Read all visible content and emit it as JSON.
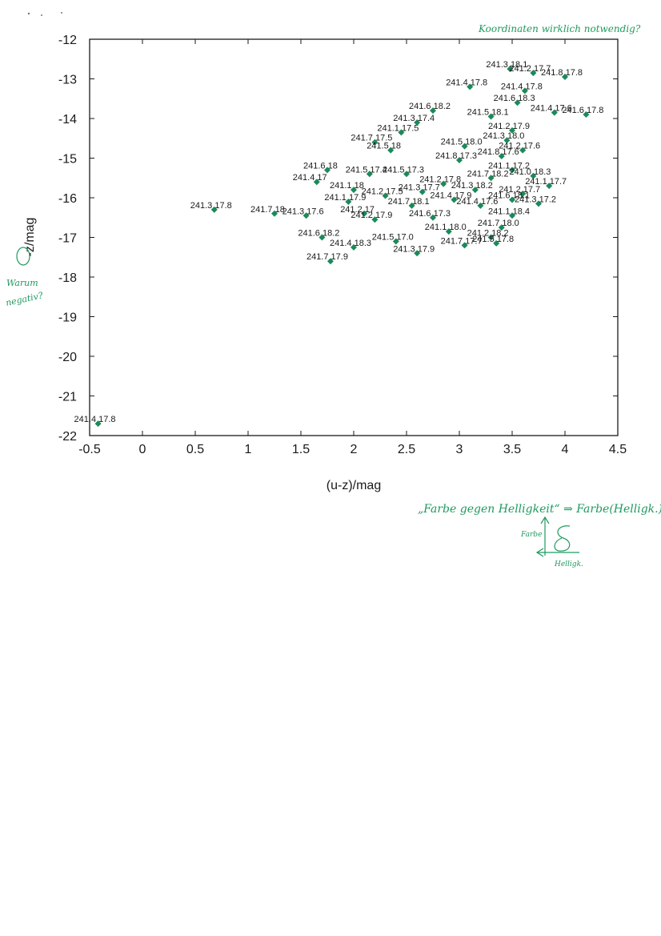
{
  "chart_data": {
    "type": "scatter",
    "title": "",
    "xlabel": "(u-z)/mag",
    "ylabel": "-z/mag",
    "xlim": [
      -0.5,
      4.5
    ],
    "ylim": [
      -22,
      -12
    ],
    "y_inverted_display": "top value -12, bottom value -22",
    "x_ticks": [
      "-0.5",
      "0",
      "0.5",
      "1",
      "1.5",
      "2",
      "2.5",
      "3",
      "3.5",
      "4",
      "4.5"
    ],
    "y_ticks": [
      "-12",
      "-13",
      "-14",
      "-15",
      "-16",
      "-17",
      "-18",
      "-19",
      "-20",
      "-21",
      "-22"
    ],
    "grid": false,
    "marker_color": "#1a8a5a",
    "series": [
      {
        "points": [
          {
            "x": -0.42,
            "y": -21.7,
            "label": "241.4 17.8"
          },
          {
            "x": 0.68,
            "y": -16.3,
            "label": "241.3 17.8"
          },
          {
            "x": 1.25,
            "y": -16.4,
            "label": "241.7 18"
          },
          {
            "x": 1.55,
            "y": -16.45,
            "label": "241.3 17.6"
          },
          {
            "x": 1.75,
            "y": -15.3,
            "label": "241.6 18"
          },
          {
            "x": 1.65,
            "y": -15.6,
            "label": "241.4 17"
          },
          {
            "x": 1.7,
            "y": -17.0,
            "label": "241.6 18.2"
          },
          {
            "x": 1.78,
            "y": -17.6,
            "label": "241.7 17.9"
          },
          {
            "x": 2.0,
            "y": -15.8,
            "label": "241.1 18"
          },
          {
            "x": 2.1,
            "y": -16.4,
            "label": "241.2 17"
          },
          {
            "x": 2.2,
            "y": -14.6,
            "label": "241.7 17.5"
          },
          {
            "x": 2.35,
            "y": -14.8,
            "label": "241.5 18"
          },
          {
            "x": 2.45,
            "y": -14.35,
            "label": "241.1 17.5"
          },
          {
            "x": 2.6,
            "y": -14.1,
            "label": "241.3 17.4"
          },
          {
            "x": 2.75,
            "y": -13.8,
            "label": "241.6 18.2"
          },
          {
            "x": 2.5,
            "y": -15.4,
            "label": "241.5 17.3"
          },
          {
            "x": 2.4,
            "y": -17.1,
            "label": "241.5 17.0"
          },
          {
            "x": 2.6,
            "y": -17.4,
            "label": "241.3 17.9"
          },
          {
            "x": 3.1,
            "y": -13.2,
            "label": "241.4 17.8"
          },
          {
            "x": 3.48,
            "y": -12.75,
            "label": "241.3 18.1"
          },
          {
            "x": 3.7,
            "y": -12.85,
            "label": "241.2 17.7"
          },
          {
            "x": 4.0,
            "y": -12.95,
            "label": "241.8 17.8"
          },
          {
            "x": 3.62,
            "y": -13.3,
            "label": "241.4 17.8"
          },
          {
            "x": 3.55,
            "y": -13.6,
            "label": "241.6 18.3"
          },
          {
            "x": 3.9,
            "y": -13.85,
            "label": "241.4 17.6"
          },
          {
            "x": 4.2,
            "y": -13.9,
            "label": "241.6 17.8"
          },
          {
            "x": 3.3,
            "y": -13.95,
            "label": "241.5 18.1"
          },
          {
            "x": 3.5,
            "y": -14.3,
            "label": "241.2 17.9"
          },
          {
            "x": 3.45,
            "y": -14.55,
            "label": "241.3 18.0"
          },
          {
            "x": 3.4,
            "y": -14.95,
            "label": "241.8 17.6"
          },
          {
            "x": 3.5,
            "y": -15.3,
            "label": "241.1 17.2"
          },
          {
            "x": 3.7,
            "y": -15.45,
            "label": "241.0 18.3"
          },
          {
            "x": 3.85,
            "y": -15.7,
            "label": "241.1 17.7"
          },
          {
            "x": 3.6,
            "y": -15.9,
            "label": "241.2 17.7"
          },
          {
            "x": 3.5,
            "y": -16.05,
            "label": "241.6 18.1"
          },
          {
            "x": 3.75,
            "y": -16.15,
            "label": "241.3 17.2"
          },
          {
            "x": 3.5,
            "y": -16.45,
            "label": "241.1 18.4"
          },
          {
            "x": 3.4,
            "y": -16.75,
            "label": "241.7 18.0"
          },
          {
            "x": 3.3,
            "y": -17.0,
            "label": "241.2 18.2"
          },
          {
            "x": 3.35,
            "y": -17.15,
            "label": "241.5 17.8"
          },
          {
            "x": 3.05,
            "y": -17.2,
            "label": "241.7 17.7"
          },
          {
            "x": 2.95,
            "y": -16.05,
            "label": "241.4 17.9"
          },
          {
            "x": 3.0,
            "y": -15.05,
            "label": "241.8 17.3"
          },
          {
            "x": 2.85,
            "y": -15.65,
            "label": "241.2 17.8"
          },
          {
            "x": 3.05,
            "y": -14.7,
            "label": "241.5 18.0"
          },
          {
            "x": 3.15,
            "y": -15.8,
            "label": "241.3 18.2"
          },
          {
            "x": 3.2,
            "y": -16.2,
            "label": "241.4 17.6"
          },
          {
            "x": 2.75,
            "y": -16.5,
            "label": "241.6 17.3"
          },
          {
            "x": 2.9,
            "y": -16.85,
            "label": "241.1 18.0"
          },
          {
            "x": 2.2,
            "y": -16.55,
            "label": "241.2 17.9"
          },
          {
            "x": 2.0,
            "y": -17.25,
            "label": "241.4 18.3"
          },
          {
            "x": 2.3,
            "y": -15.95,
            "label": "241.2 17.5"
          },
          {
            "x": 2.55,
            "y": -16.2,
            "label": "241.7 18.1"
          },
          {
            "x": 2.65,
            "y": -15.85,
            "label": "241.3 17.7"
          },
          {
            "x": 1.95,
            "y": -16.1,
            "label": "241.1 17.9"
          },
          {
            "x": 2.15,
            "y": -15.4,
            "label": "241.5 17.4"
          },
          {
            "x": 3.6,
            "y": -14.8,
            "label": "241.2 17.6"
          },
          {
            "x": 3.3,
            "y": -15.5,
            "label": "241.7 18.2"
          }
        ]
      }
    ]
  },
  "annotations": {
    "top_right": "Koordinaten wirklich notwendig?",
    "left_margin": [
      "Warum",
      "negativ?"
    ],
    "below_chart": "„Farbe gegen Helligkeit“ ⇒ Farbe(Helligk.)",
    "sketch_y_label": "Farbe",
    "sketch_x_label": "Helligk."
  },
  "colors": {
    "annotation_ink": "#1f9a5f",
    "axis": "#1a1a1a"
  }
}
